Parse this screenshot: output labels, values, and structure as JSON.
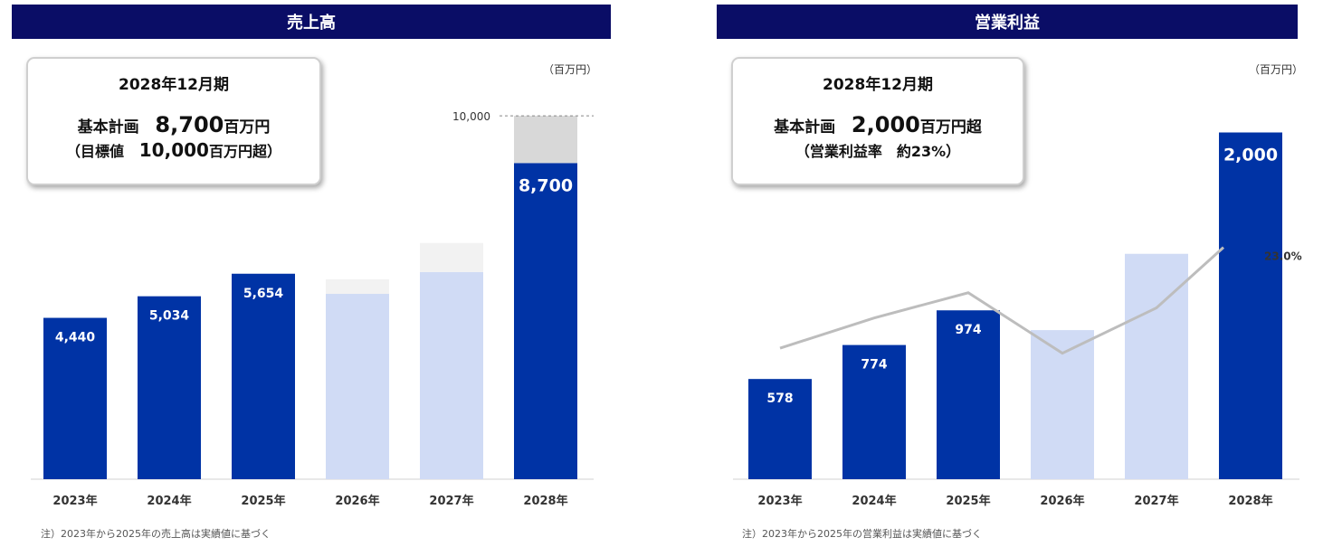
{
  "colors": {
    "header_bg": "#0a0d66",
    "actual": "#0033a5",
    "plan": "#d0dbf5",
    "plan_gap": "#f2f2f2",
    "target_gap": "#d8d8d8",
    "line": "#bdbdbd"
  },
  "chart_data": [
    {
      "type": "bar",
      "title": "売上高",
      "unit": "（百万円）",
      "categories": [
        "2023年",
        "2024年",
        "2025年",
        "2026年",
        "2027年",
        "2028年"
      ],
      "series": [
        {
          "values": [
            4440,
            5034,
            5654,
            5100,
            5700,
            8700
          ]
        },
        {
          "values": [
            0,
            0,
            0,
            400,
            800,
            1300
          ]
        }
      ],
      "data_labels": [
        "4,440",
        "5,034",
        "5,654",
        "",
        "",
        "8,700"
      ],
      "reference_line": {
        "value": 10000,
        "label": "10,000"
      },
      "ylim": [
        0,
        10400
      ],
      "callout": {
        "period": "2028年12月期",
        "plan_prefix": "基本計画",
        "plan_value": "8,700",
        "plan_unit": "百万円",
        "target_open": "（目標値",
        "target_value": "10,000",
        "target_unit": "百万円超）"
      },
      "note": "注）2023年から2025年の売上高は実績値に基づく"
    },
    {
      "type": "bar",
      "title": "営業利益",
      "unit": "（百万円）",
      "categories": [
        "2023年",
        "2024年",
        "2025年",
        "2026年",
        "2027年",
        "2028年"
      ],
      "series": [
        {
          "values": [
            578,
            774,
            974,
            860,
            1300,
            2000
          ]
        }
      ],
      "data_labels": [
        "578",
        "774",
        "974",
        "",
        "",
        "2,000"
      ],
      "margin_line": {
        "values": [
          13.0,
          16.0,
          18.5,
          12.5,
          17.0,
          23.0
        ],
        "ylim": [
          0,
          37.5
        ],
        "last_label": "23.0%"
      },
      "ylim": [
        0,
        2180
      ],
      "callout": {
        "period": "2028年12月期",
        "plan_prefix": "基本計画",
        "plan_value": "2,000",
        "plan_unit": "百万円超",
        "sub_line": "（営業利益率　約23%）"
      },
      "note": "注）2023年から2025年の営業利益は実績値に基づく"
    }
  ]
}
